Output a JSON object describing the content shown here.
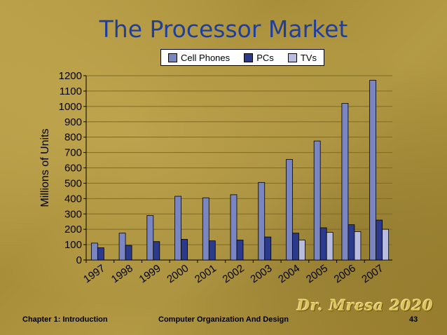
{
  "slide": {
    "title": "The Processor Market",
    "footer_left": "Chapter 1: Introduction",
    "footer_center": "Computer Organization And Design",
    "page_number": "43",
    "signature": "Dr. Mresa 2020"
  },
  "colors": {
    "title": "#1f3f9a",
    "cell_phones": "#7a86c2",
    "pcs": "#2b3a8a",
    "tvs": "#b8bde0"
  },
  "chart_data": {
    "type": "bar",
    "title": "",
    "xlabel": "",
    "ylabel": "Millions of Units",
    "ylim": [
      0,
      1200
    ],
    "yticks": [
      0,
      100,
      200,
      300,
      400,
      500,
      600,
      700,
      800,
      900,
      1000,
      1100,
      1200
    ],
    "grid": true,
    "legend": "top",
    "categories": [
      "1997",
      "1998",
      "1999",
      "2000",
      "2001",
      "2002",
      "2003",
      "2004",
      "2005",
      "2006",
      "2007"
    ],
    "series": [
      {
        "name": "Cell Phones",
        "values": [
          110,
          175,
          290,
          415,
          405,
          425,
          505,
          655,
          775,
          1020,
          1170
        ]
      },
      {
        "name": "PCs",
        "values": [
          80,
          95,
          120,
          135,
          125,
          130,
          150,
          175,
          210,
          230,
          260
        ]
      },
      {
        "name": "TVs",
        "values": [
          0,
          0,
          0,
          0,
          0,
          0,
          0,
          130,
          180,
          185,
          200
        ]
      }
    ]
  }
}
